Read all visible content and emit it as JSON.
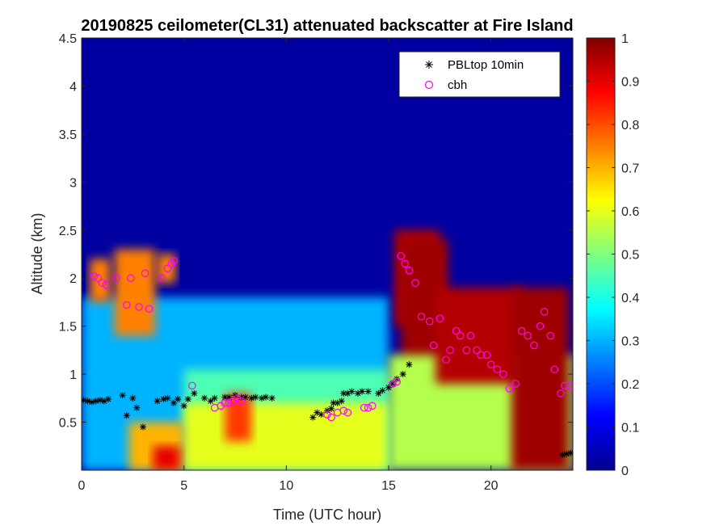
{
  "chart_data": {
    "type": "heatmap",
    "title": "20190825 ceilometer(CL31) attenuated backscatter at Fire Island",
    "xlabel": "Time (UTC hour)",
    "ylabel": "Altitude (km)",
    "xlim": [
      0,
      24
    ],
    "ylim": [
      0,
      4.5
    ],
    "x_ticks": [
      0,
      5,
      10,
      15,
      20
    ],
    "x_tick_labels": [
      "0",
      "5",
      "10",
      "15",
      "20"
    ],
    "y_ticks": [
      0.5,
      1,
      1.5,
      2,
      2.5,
      3,
      3.5,
      4,
      4.5
    ],
    "y_tick_labels": [
      "0.5",
      "1",
      "1.5",
      "2",
      "2.5",
      "3",
      "3.5",
      "4",
      "4.5"
    ],
    "colorbar": {
      "colormap": "jet",
      "range": [
        0,
        1
      ],
      "ticks": [
        0,
        0.1,
        0.2,
        0.3,
        0.4,
        0.5,
        0.6,
        0.7,
        0.8,
        0.9,
        1
      ],
      "tick_labels": [
        "0",
        "0.1",
        "0.2",
        "0.3",
        "0.4",
        "0.5",
        "0.6",
        "0.7",
        "0.8",
        "0.9",
        "1"
      ]
    },
    "legend": {
      "placement": "top-right",
      "entries": [
        {
          "label": "PBLtop 10min",
          "marker": "asterisk",
          "color": "#000000"
        },
        {
          "label": "cbh",
          "marker": "circle",
          "color": "#ff00ff"
        }
      ]
    },
    "series": [
      {
        "name": "PBLtop 10min",
        "marker": "asterisk",
        "color": "#000000",
        "x": [
          0.1,
          0.3,
          0.5,
          0.7,
          0.9,
          1.1,
          1.3,
          2.0,
          2.2,
          2.5,
          2.7,
          3.0,
          3.7,
          4.0,
          4.2,
          4.5,
          4.7,
          5.0,
          5.2,
          5.5,
          6.0,
          6.3,
          6.5,
          7.0,
          7.2,
          7.5,
          7.8,
          8.0,
          8.3,
          8.5,
          8.8,
          9.0,
          9.3,
          11.3,
          11.5,
          11.7,
          12.0,
          12.2,
          12.3,
          12.5,
          12.7,
          12.8,
          13.0,
          13.2,
          13.5,
          13.7,
          14.0,
          14.5,
          14.7,
          15.0,
          15.2,
          15.4,
          15.7,
          16.0,
          23.5,
          23.7,
          23.9
        ],
        "y": [
          0.73,
          0.72,
          0.71,
          0.72,
          0.73,
          0.72,
          0.74,
          0.78,
          0.57,
          0.75,
          0.65,
          0.45,
          0.72,
          0.74,
          0.75,
          0.7,
          0.74,
          0.67,
          0.74,
          0.8,
          0.75,
          0.72,
          0.75,
          0.76,
          0.76,
          0.78,
          0.76,
          0.76,
          0.75,
          0.76,
          0.75,
          0.76,
          0.75,
          0.55,
          0.6,
          0.58,
          0.62,
          0.64,
          0.7,
          0.7,
          0.72,
          0.8,
          0.8,
          0.82,
          0.8,
          0.82,
          0.82,
          0.8,
          0.83,
          0.86,
          0.9,
          0.95,
          1.0,
          1.1,
          0.16,
          0.17,
          0.18
        ]
      },
      {
        "name": "cbh",
        "marker": "circle",
        "color": "#ff00ff",
        "x": [
          0.6,
          0.8,
          1.0,
          1.2,
          1.7,
          2.2,
          2.4,
          2.8,
          3.1,
          3.3,
          3.9,
          4.2,
          4.4,
          4.5,
          5.4,
          6.5,
          6.8,
          7.0,
          7.2,
          7.4,
          7.6,
          7.8,
          12.0,
          12.2,
          12.5,
          12.8,
          13.0,
          13.8,
          14.0,
          14.2,
          15.2,
          15.4,
          15.6,
          15.8,
          16.0,
          16.3,
          16.6,
          17.0,
          17.2,
          17.5,
          17.8,
          18.0,
          18.3,
          18.5,
          18.8,
          19.0,
          19.3,
          19.5,
          19.8,
          20.0,
          20.3,
          20.6,
          20.9,
          21.2,
          21.5,
          21.8,
          22.1,
          22.4,
          22.6,
          22.9,
          23.1,
          23.4,
          23.6,
          23.9
        ],
        "y": [
          2.02,
          2.0,
          1.95,
          1.93,
          2.0,
          1.72,
          2.0,
          1.7,
          2.05,
          1.68,
          2.0,
          2.1,
          2.15,
          2.18,
          0.88,
          0.65,
          0.67,
          0.7,
          0.7,
          0.72,
          0.75,
          0.72,
          0.58,
          0.55,
          0.6,
          0.62,
          0.6,
          0.65,
          0.65,
          0.67,
          0.9,
          0.92,
          2.23,
          2.15,
          2.08,
          1.95,
          1.6,
          1.55,
          1.3,
          1.58,
          1.15,
          1.25,
          1.45,
          1.4,
          1.25,
          1.4,
          1.25,
          1.2,
          1.2,
          1.1,
          1.05,
          1.0,
          0.85,
          0.9,
          1.45,
          1.4,
          1.3,
          1.5,
          1.65,
          1.4,
          1.05,
          0.8,
          0.88,
          0.87
        ]
      }
    ],
    "field_features": [
      {
        "x": [
          0,
          24
        ],
        "y": [
          0,
          4.5
        ],
        "value": 0.02
      },
      {
        "x": [
          0,
          15
        ],
        "y": [
          0,
          1.8
        ],
        "value": 0.3
      },
      {
        "x": [
          0.4,
          1.4
        ],
        "y": [
          1.75,
          2.2
        ],
        "value": 0.75
      },
      {
        "x": [
          1.6,
          3.6
        ],
        "y": [
          1.4,
          2.3
        ],
        "value": 0.75
      },
      {
        "x": [
          3.7,
          4.6
        ],
        "y": [
          1.95,
          2.25
        ],
        "value": 0.75
      },
      {
        "x": [
          5,
          15
        ],
        "y": [
          0,
          1.05
        ],
        "value": 0.45
      },
      {
        "x": [
          5,
          15
        ],
        "y": [
          0,
          0.7
        ],
        "value": 0.6
      },
      {
        "x": [
          2.3,
          5.0
        ],
        "y": [
          0,
          0.5
        ],
        "value": 0.7
      },
      {
        "x": [
          3.5,
          4.8
        ],
        "y": [
          0,
          0.25
        ],
        "value": 0.9
      },
      {
        "x": [
          7.0,
          8.3
        ],
        "y": [
          0.3,
          0.8
        ],
        "value": 0.82
      },
      {
        "x": [
          15.3,
          17.5
        ],
        "y": [
          1.5,
          2.5
        ],
        "value": 0.95
      },
      {
        "x": [
          15.6,
          17.9
        ],
        "y": [
          0.7,
          2.4
        ],
        "value": 0.97
      },
      {
        "x": [
          15,
          24
        ],
        "y": [
          0,
          1.2
        ],
        "value": 0.55
      },
      {
        "x": [
          17.3,
          21.5
        ],
        "y": [
          0.9,
          1.9
        ],
        "value": 0.95
      },
      {
        "x": [
          21,
          23.8
        ],
        "y": [
          0,
          1.9
        ],
        "value": 0.97
      }
    ]
  }
}
